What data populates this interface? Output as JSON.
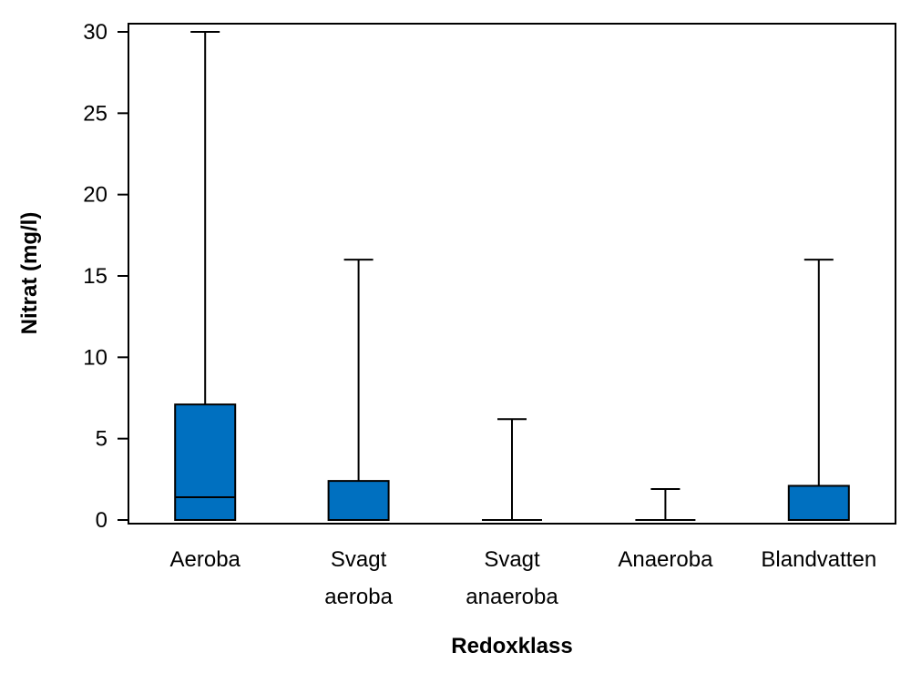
{
  "chart_data": {
    "type": "boxplot",
    "title": "",
    "xlabel": "Redoxklass",
    "ylabel": "Nitrat (mg/l)",
    "ylim": [
      0,
      30
    ],
    "yticks": [
      0,
      5,
      10,
      15,
      20,
      25,
      30
    ],
    "box_color": "#0070C0",
    "categories": [
      {
        "label_lines": [
          "Aeroba"
        ],
        "min": 0,
        "q1": 0,
        "median": 1.4,
        "q3": 7.1,
        "max": 30
      },
      {
        "label_lines": [
          "Svagt",
          "aeroba"
        ],
        "min": 0,
        "q1": 0,
        "median": 0,
        "q3": 2.4,
        "max": 16
      },
      {
        "label_lines": [
          "Svagt",
          "anaeroba"
        ],
        "min": 0,
        "q1": 0,
        "median": 0,
        "q3": 0,
        "max": 6.2
      },
      {
        "label_lines": [
          "Anaeroba"
        ],
        "min": 0,
        "q1": 0,
        "median": 0,
        "q3": 0,
        "max": 1.9
      },
      {
        "label_lines": [
          "Blandvatten"
        ],
        "min": 0,
        "q1": 0,
        "median": 0,
        "q3": 2.1,
        "max": 16
      }
    ]
  }
}
